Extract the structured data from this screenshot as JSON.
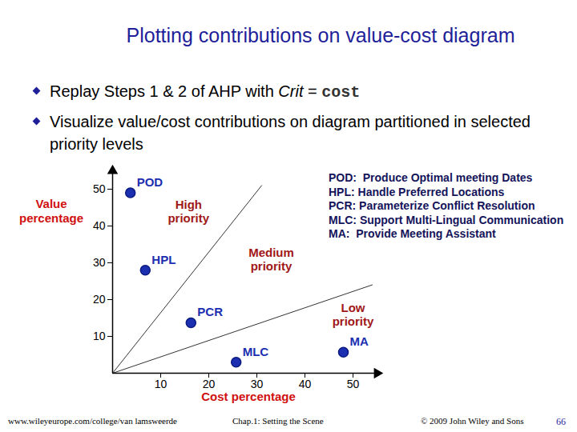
{
  "slide": {
    "title": "Plotting contributions on value-cost diagram",
    "bullets": [
      [
        {
          "text": "Replay Steps 1 & 2 of AHP with "
        },
        {
          "text": "Crit",
          "style": "italic"
        },
        {
          "text": " = "
        },
        {
          "text": "cost",
          "style": "mono"
        }
      ],
      [
        {
          "text": "Visualize value/cost contributions on diagram partitioned in selected priority levels"
        }
      ]
    ],
    "glossary": [
      "POD:  Produce Optimal meeting Dates",
      "HPL: Handle Preferred Locations",
      "PCR: Parameterize Conflict Resolution",
      "MLC: Support Multi-Lingual Communication",
      "MA:  Provide Meeting Assistant"
    ],
    "footer": {
      "left": "www.wileyeurope.com/college/van lamsweerde",
      "center": "Chap.1: Setting the Scene",
      "right": "© 2009 John Wiley and Sons",
      "page": 66
    }
  },
  "chart_data": {
    "type": "scatter",
    "x_label": "Cost percentage",
    "y_label": "Value percentage",
    "labels": [
      "POD",
      "HPL",
      "PCR",
      "MLC",
      "MA"
    ],
    "x": [
      3.7,
      6.8,
      16.3,
      25.7,
      48
    ],
    "y": [
      49,
      28,
      13.7,
      3,
      5.7
    ],
    "color": "#1c2fb0",
    "xlim": [
      0,
      55
    ],
    "ylim": [
      0,
      55
    ],
    "xticks": [
      10,
      20,
      30,
      40,
      50
    ],
    "yticks": [
      10,
      20,
      30,
      40,
      50
    ],
    "grid": false,
    "partition_lines": [
      {
        "x": [
          0,
          31
        ],
        "y": [
          0,
          51
        ]
      },
      {
        "x": [
          0,
          54
        ],
        "y": [
          0,
          24
        ]
      }
    ],
    "annotations": [
      {
        "text": "High priority",
        "x": 15.8,
        "y": 44.1
      },
      {
        "text": "Medium priority",
        "x": 33,
        "y": 31
      },
      {
        "text": "Low priority",
        "x": 50,
        "y": 16
      }
    ]
  }
}
